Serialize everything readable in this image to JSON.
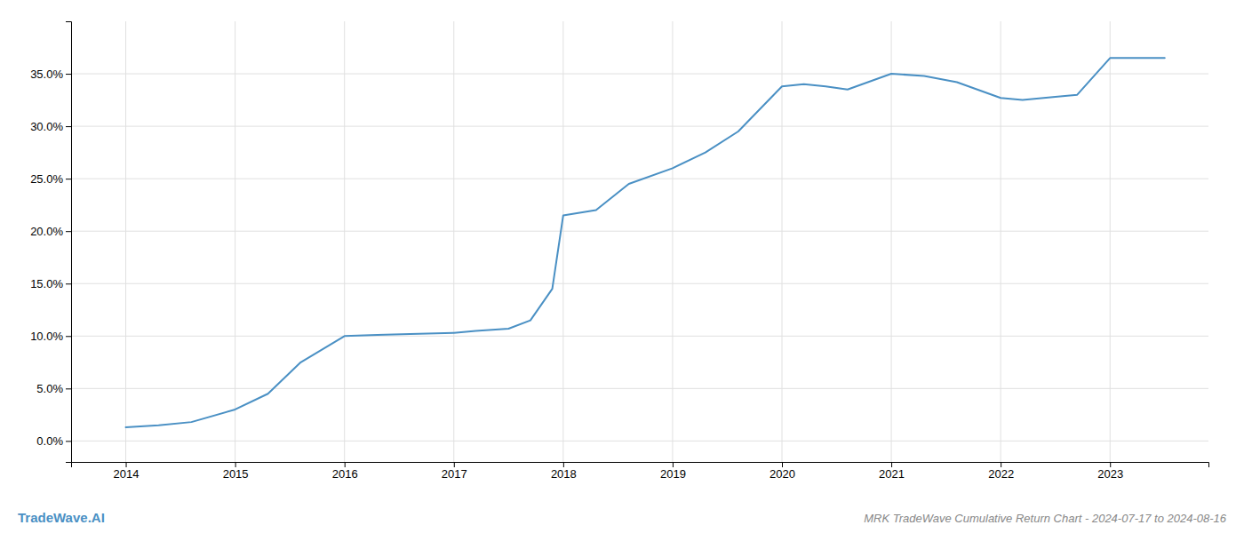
{
  "chart_data": {
    "type": "line",
    "title": "MRK TradeWave Cumulative Return Chart - 2024-07-17 to 2024-08-16",
    "annotations": [
      "TradeWave.AI"
    ],
    "x": [
      2014.0,
      2014.3,
      2014.6,
      2015.0,
      2015.3,
      2015.6,
      2016.0,
      2016.3,
      2016.6,
      2017.0,
      2017.2,
      2017.5,
      2017.7,
      2017.9,
      2018.0,
      2018.3,
      2018.6,
      2019.0,
      2019.3,
      2019.6,
      2020.0,
      2020.2,
      2020.4,
      2020.6,
      2021.0,
      2021.3,
      2021.6,
      2022.0,
      2022.2,
      2022.5,
      2022.7,
      2023.0,
      2023.5
    ],
    "values": [
      1.3,
      1.5,
      1.8,
      3.0,
      4.5,
      7.5,
      10.0,
      10.1,
      10.2,
      10.3,
      10.5,
      10.7,
      11.5,
      14.5,
      21.5,
      22.0,
      24.5,
      26.0,
      27.5,
      29.5,
      33.8,
      34.0,
      33.8,
      33.5,
      35.0,
      34.8,
      34.2,
      32.7,
      32.5,
      32.8,
      33.0,
      36.5,
      36.5
    ],
    "color": "#4a90c4",
    "xlim": [
      2013.5,
      2023.9
    ],
    "ylim": [
      -2.0,
      40.0
    ],
    "xticks": [
      2014,
      2015,
      2016,
      2017,
      2018,
      2019,
      2020,
      2021,
      2022,
      2023
    ],
    "yticks": [
      {
        "value": 0.0,
        "label": "0.0%"
      },
      {
        "value": 5.0,
        "label": "5.0%"
      },
      {
        "value": 10.0,
        "label": "10.0%"
      },
      {
        "value": 15.0,
        "label": "15.0%"
      },
      {
        "value": 20.0,
        "label": "20.0%"
      },
      {
        "value": 25.0,
        "label": "25.0%"
      },
      {
        "value": 30.0,
        "label": "30.0%"
      },
      {
        "value": 35.0,
        "label": "35.0%"
      }
    ],
    "grid": true
  }
}
